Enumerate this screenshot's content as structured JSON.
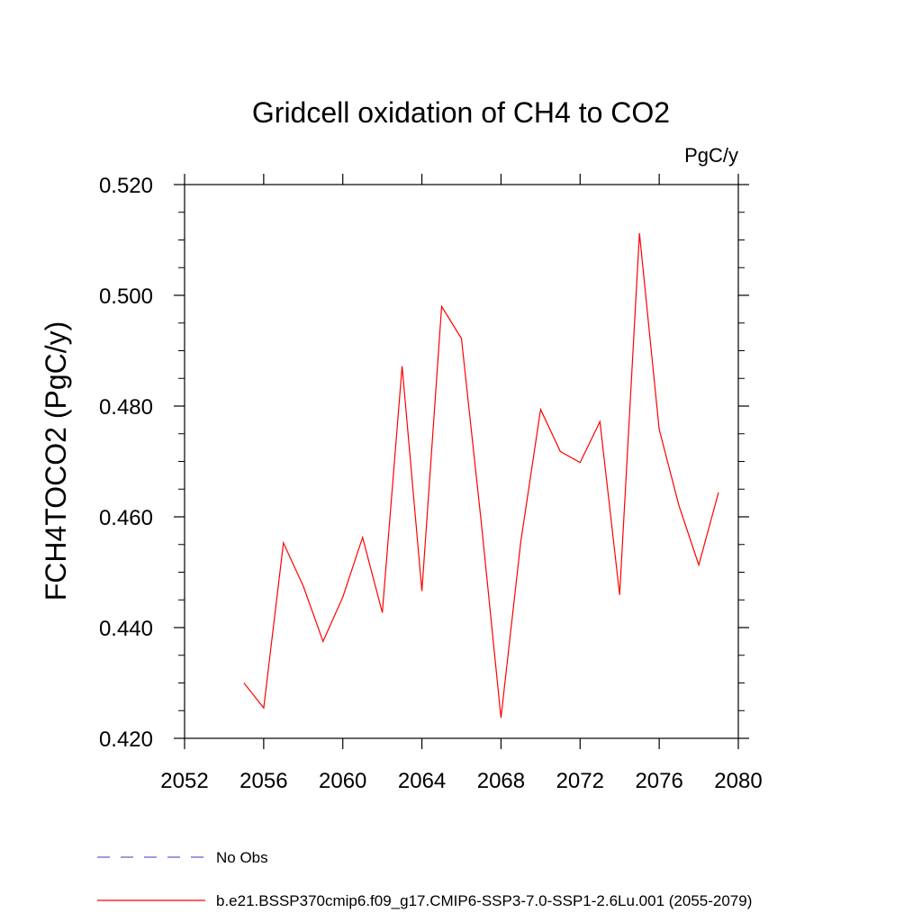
{
  "chart_data": {
    "type": "line",
    "title": "Gridcell oxidation of CH4 to CO2",
    "units_label": "PgC/y",
    "xlabel": "",
    "ylabel": "FCH4TOCO2  (PgC/y)",
    "xlim": [
      2052,
      2080
    ],
    "ylim": [
      0.42,
      0.52
    ],
    "x_ticks": [
      2052,
      2056,
      2060,
      2064,
      2068,
      2072,
      2076,
      2080
    ],
    "x_tick_labels": [
      "2052",
      "2056",
      "2060",
      "2064",
      "2068",
      "2072",
      "2076",
      "2080"
    ],
    "y_ticks": [
      0.42,
      0.44,
      0.46,
      0.48,
      0.5,
      0.52
    ],
    "y_tick_labels": [
      "0.420",
      "0.440",
      "0.460",
      "0.480",
      "0.500",
      "0.520"
    ],
    "grid": false,
    "legend_position": "bottom-left",
    "series": [
      {
        "name": "No Obs",
        "color": "#6a5acd",
        "dash": "dashed",
        "x": [],
        "y": []
      },
      {
        "name": "b.e21.BSSP370cmip6.f09_g17.CMIP6-SSP3-7.0-SSP1-2.6Lu.001 (2055-2079)",
        "color": "#ff0000",
        "dash": "solid",
        "x": [
          2055,
          2056,
          2057,
          2058,
          2059,
          2060,
          2061,
          2062,
          2063,
          2064,
          2065,
          2066,
          2067,
          2068,
          2069,
          2070,
          2071,
          2072,
          2073,
          2074,
          2075,
          2076,
          2077,
          2078,
          2079
        ],
        "y": [
          0.43,
          0.4255,
          0.4553,
          0.4475,
          0.4375,
          0.4455,
          0.4563,
          0.4427,
          0.4872,
          0.4466,
          0.498,
          0.4922,
          0.459,
          0.4237,
          0.4555,
          0.4794,
          0.4718,
          0.4698,
          0.4772,
          0.4459,
          0.5112,
          0.4758,
          0.462,
          0.4513,
          0.4644
        ]
      }
    ]
  }
}
